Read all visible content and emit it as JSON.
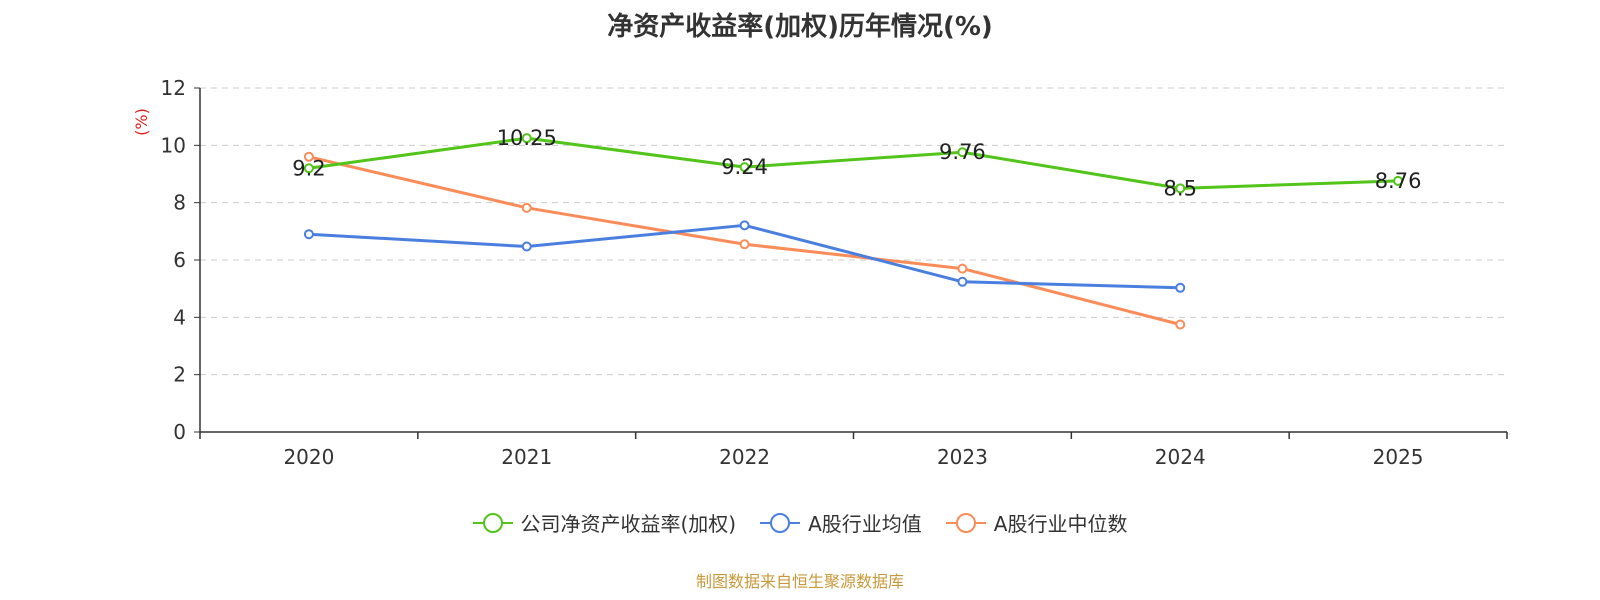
{
  "chart_data": {
    "type": "line",
    "title": "净资产收益率(加权)历年情况(%)",
    "ylabel": "(%)",
    "xlabel": "",
    "categories": [
      "2020",
      "2021",
      "2022",
      "2023",
      "2024",
      "2025"
    ],
    "ylim": [
      0,
      12
    ],
    "yticks": [
      0,
      2,
      4,
      6,
      8,
      10,
      12
    ],
    "grid": true,
    "legend_position": "bottom-center",
    "series": [
      {
        "name": "公司净资产收益率(加权)",
        "color": "#52c41a",
        "values": [
          9.2,
          10.25,
          9.24,
          9.76,
          8.5,
          8.76
        ],
        "labels": [
          "9.2",
          "10.25",
          "9.24",
          "9.76",
          "8.5",
          "8.76"
        ],
        "show_labels": true
      },
      {
        "name": "A股行业均值",
        "color": "#4a7fe0",
        "values": [
          6.9,
          6.47,
          7.21,
          5.24,
          5.03,
          null
        ],
        "show_labels": false
      },
      {
        "name": "A股行业中位数",
        "color": "#fa8c5a",
        "values": [
          9.6,
          7.82,
          6.55,
          5.7,
          3.75,
          null
        ],
        "show_labels": false
      }
    ]
  },
  "source": "制图数据来自恒生聚源数据库"
}
